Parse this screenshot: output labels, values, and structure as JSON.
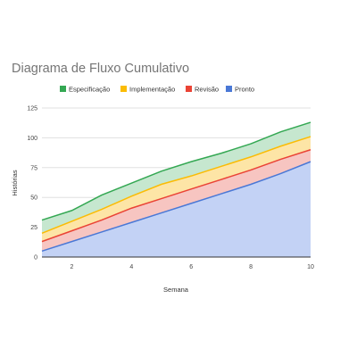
{
  "chart_data": {
    "type": "area",
    "stacked": true,
    "title": "Diagrama de Fluxo Cumulativo",
    "xlabel": "Semana",
    "ylabel": "Histórias",
    "x": [
      1,
      2,
      3,
      4,
      5,
      6,
      7,
      8,
      9,
      10
    ],
    "xlim": [
      1,
      10
    ],
    "ylim": [
      0,
      125
    ],
    "xticks": [
      "2",
      "4",
      "6",
      "8",
      "10"
    ],
    "yticks": [
      "0",
      "25",
      "50",
      "75",
      "100",
      "125"
    ],
    "grid": true,
    "legend_position": "top-left",
    "series": [
      {
        "name": "Pronto",
        "color": "#4a78d6",
        "fill": "#c3d2f5",
        "values": [
          5,
          13,
          21,
          29,
          37,
          45,
          53,
          61,
          70,
          80
        ]
      },
      {
        "name": "Revisão",
        "color": "#ea4335",
        "fill": "#f7c5c1",
        "values": [
          8,
          9,
          10,
          12,
          12,
          12,
          12,
          12,
          12,
          10
        ]
      },
      {
        "name": "Implementação",
        "color": "#fbbc04",
        "fill": "#fde5a6",
        "values": [
          7,
          8,
          9,
          10,
          12,
          11,
          11,
          11,
          11,
          11
        ]
      },
      {
        "name": "Especificação",
        "color": "#34a853",
        "fill": "#c6e7cf",
        "values": [
          11,
          9,
          12,
          11,
          11,
          12,
          11,
          11,
          12,
          12
        ]
      }
    ],
    "legend_order": [
      "Especificação",
      "Implementação",
      "Revisão",
      "Pronto"
    ]
  }
}
